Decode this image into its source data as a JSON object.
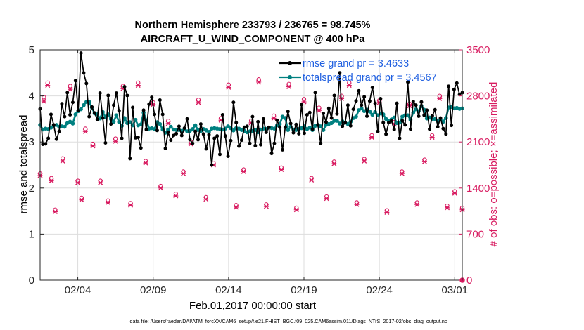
{
  "chart_data": {
    "type": "line",
    "title_line1": "Northern Hemisphere 233793 / 236765 = 98.745%",
    "title_line2": "AIRCRAFT_U_WIND_COMPONENT @ 400 hPa",
    "xlabel": "Feb.01,2017 00:00:00 start",
    "ylabel_left": "rmse and totalspread",
    "ylabel_right": "# of obs: o=possible; ×=assimilated",
    "xlim": [
      1.5,
      29.5
    ],
    "ylim_left": [
      0,
      5
    ],
    "ylim_right": [
      0,
      3500
    ],
    "x_ticks": [
      {
        "value": 4,
        "label": "02/04"
      },
      {
        "value": 9,
        "label": "02/09"
      },
      {
        "value": 14,
        "label": "02/14"
      },
      {
        "value": 19,
        "label": "02/19"
      },
      {
        "value": 24,
        "label": "02/24"
      },
      {
        "value": 29,
        "label": "03/01"
      }
    ],
    "y_ticks_left": [
      "0",
      "1",
      "2",
      "3",
      "4",
      "5"
    ],
    "y_ticks_right": [
      "0",
      "700",
      "1400",
      "2100",
      "2800",
      "3500"
    ],
    "grid": true,
    "legend_position": "top-right",
    "colors": {
      "rmse": "#000000",
      "spread": "#008080",
      "obs": "#d81b60",
      "legend_text": "#1f5fe0",
      "right_axis": "#d81b60"
    },
    "series": [
      {
        "name": "rmse grand pr = 3.4633",
        "values": [
          3.72,
          2.95,
          2.96,
          3.08,
          3.6,
          3.37,
          3.06,
          3.23,
          3.83,
          3.55,
          4.07,
          3.59,
          3.86,
          4.33,
          3.68,
          4.93,
          4.5,
          4.27,
          3.55,
          3.76,
          3.63,
          3.49,
          4.06,
          3.52,
          2.98,
          4.01,
          3.39,
          3.8,
          4.06,
          3.68,
          3.08,
          4.2,
          4.01,
          2.64,
          3.75,
          3.09,
          3.1,
          2.87,
          3.69,
          3.27,
          3.82,
          3.97,
          3.6,
          3.25,
          3.91,
          3.6,
          2.86,
          3.21,
          3.04,
          3.14,
          3.18,
          3.34,
          3.14,
          3.3,
          3.5,
          3.05,
          2.97,
          3.23,
          3.05,
          3.39,
          3.17,
          2.85,
          3.16,
          2.5,
          3.08,
          3.13,
          2.73,
          3.59,
          3.13,
          2.69,
          3.03,
          3.86,
          3.42,
          2.91,
          3.04,
          3.32,
          3.34,
          2.97,
          3.55,
          2.92,
          3.44,
          2.94,
          3.5,
          3.21,
          3.32,
          2.75,
          2.97,
          3.47,
          3.32,
          2.83,
          3.32,
          3.66,
          3.4,
          3.2,
          3.38,
          3.18,
          3.81,
          3.19,
          3.59,
          3.64,
          3.28,
          4.07,
          3.37,
          2.97,
          3.62,
          3.43,
          3.73,
          3.52,
          4.01,
          3.61,
          4.5,
          3.34,
          3.42,
          3.8,
          3.35,
          3.71,
          3.89,
          4.11,
          3.8,
          3.98,
          3.56,
          3.89,
          4.18,
          3.84,
          3.23,
          3.94,
          3.42,
          3.17,
          3.42,
          3.46,
          3.27,
          3.84,
          3.08,
          3.46,
          3.37,
          4.3,
          3.28,
          3.88,
          3.8,
          3.56,
          3.87,
          3.58,
          3.69,
          3.28,
          3.57,
          3.7,
          3.33,
          3.52,
          3.29,
          3.17,
          4.21,
          3.36,
          4.14,
          4.28,
          4.03,
          4.07
        ]
      },
      {
        "name": "totalspread grand pr = 3.4567",
        "values": [
          3.37,
          3.27,
          3.29,
          3.28,
          3.31,
          3.36,
          3.37,
          3.33,
          3.34,
          3.33,
          3.41,
          3.44,
          3.4,
          3.6,
          3.67,
          3.71,
          3.8,
          3.87,
          3.87,
          3.75,
          3.62,
          3.6,
          3.51,
          3.65,
          3.54,
          3.6,
          3.5,
          3.44,
          3.58,
          3.43,
          3.35,
          3.52,
          3.41,
          3.43,
          3.36,
          3.48,
          3.36,
          3.38,
          3.64,
          3.47,
          3.29,
          3.3,
          3.28,
          3.43,
          3.39,
          3.27,
          3.2,
          3.27,
          3.33,
          3.27,
          3.26,
          3.26,
          3.24,
          3.27,
          3.23,
          3.24,
          3.28,
          3.36,
          3.26,
          3.24,
          3.28,
          3.25,
          3.22,
          3.29,
          3.3,
          3.29,
          3.28,
          3.27,
          3.29,
          3.34,
          3.3,
          3.25,
          3.3,
          3.29,
          3.26,
          3.24,
          3.21,
          3.23,
          3.24,
          3.26,
          3.21,
          3.27,
          3.29,
          3.28,
          3.31,
          3.3,
          3.29,
          3.36,
          3.39,
          3.55,
          3.52,
          3.26,
          3.33,
          3.27,
          3.26,
          3.28,
          3.3,
          3.34,
          3.28,
          3.31,
          3.26,
          3.35,
          3.37,
          3.34,
          3.26,
          3.37,
          3.39,
          3.41,
          3.46,
          3.46,
          3.4,
          3.45,
          3.42,
          3.39,
          3.44,
          3.52,
          3.55,
          3.69,
          3.73,
          3.67,
          3.7,
          3.66,
          3.59,
          3.65,
          3.58,
          3.62,
          3.6,
          3.5,
          3.45,
          3.49,
          3.53,
          3.41,
          3.42,
          3.55,
          3.58,
          3.58,
          3.48,
          3.64,
          3.71,
          3.67,
          3.78,
          3.7,
          3.51,
          3.53,
          3.49,
          3.5,
          3.45,
          3.49,
          3.44,
          3.52,
          3.75,
          3.76,
          3.73,
          3.74,
          3.72,
          3.73
        ]
      }
    ],
    "obs_points": {
      "x": [
        1.5,
        1.75,
        2,
        2.25,
        2.5,
        3,
        3.5,
        4,
        4.25,
        4.5,
        5,
        5.5,
        6,
        6.5,
        7,
        7.5,
        8,
        8.5,
        9,
        9.5,
        10,
        10.5,
        11,
        11.5,
        12,
        12.5,
        13,
        13.5,
        14,
        14.5,
        15,
        15.5,
        16,
        16.5,
        17,
        17.5,
        18,
        18.5,
        19,
        19.5,
        20,
        20.5,
        21,
        21.5,
        22,
        22.5,
        23,
        23.5,
        24,
        24.5,
        25,
        25.5,
        26,
        26.5,
        27,
        27.5,
        28,
        28.5,
        29,
        29.5
      ],
      "possible": [
        1620,
        2780,
        3000,
        1550,
        1070,
        1850,
        2950,
        1510,
        1250,
        2300,
        2070,
        1510,
        1210,
        2150,
        2950,
        1170,
        3000,
        1810,
        2700,
        1430,
        2420,
        1310,
        1650,
        2100,
        2740,
        1260,
        1780,
        2460,
        2970,
        1140,
        1680,
        2420,
        3050,
        1150,
        2500,
        1710,
        2980,
        1100,
        2750,
        1550,
        2620,
        1270,
        1800,
        2800,
        3000,
        1180,
        1840,
        2200,
        2730,
        1060,
        2400,
        1650,
        2680,
        1180,
        1830,
        2200,
        2800,
        1130,
        1350,
        1100
      ],
      "assimilated": [
        1590,
        2720,
        2960,
        1510,
        1040,
        1810,
        2900,
        1480,
        1220,
        2260,
        2040,
        1480,
        1180,
        2110,
        2910,
        1140,
        2960,
        1780,
        2670,
        1400,
        2380,
        1280,
        1620,
        2070,
        2700,
        1230,
        1750,
        2430,
        2930,
        1110,
        1650,
        2390,
        3010,
        1120,
        2460,
        1680,
        2940,
        1070,
        2710,
        1520,
        2580,
        1240,
        1770,
        2760,
        2960,
        1150,
        1810,
        2170,
        2700,
        1030,
        2370,
        1620,
        2650,
        1150,
        1800,
        2170,
        2760,
        1100,
        1320,
        1070
      ]
    },
    "footer": "data file: /Users/raeder/DAI/ATM_forcXX/CAM6_setup/f.e21.FHIST_BGC.f09_025.CAM6assim.011/Diags_NTrS_2017-02/obs_diag_output.nc"
  }
}
